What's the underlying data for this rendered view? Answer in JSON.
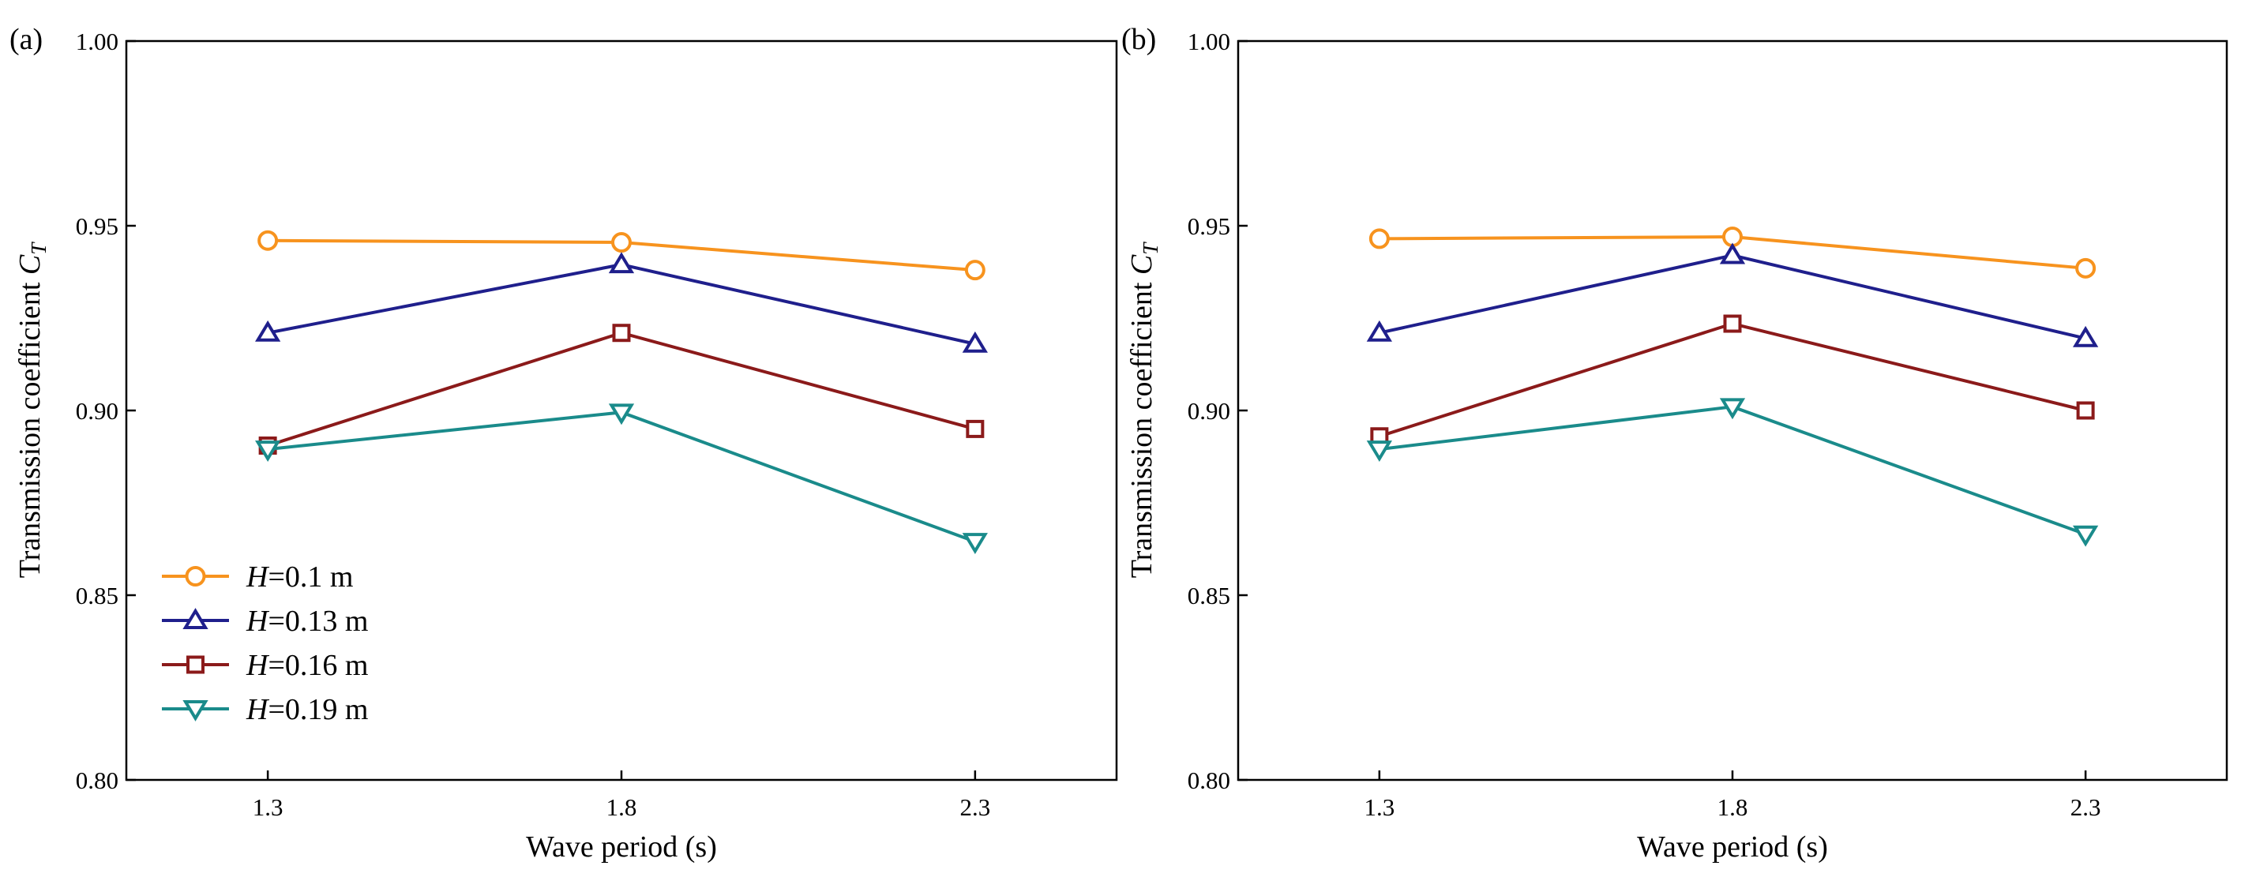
{
  "chart_data": [
    {
      "type": "line",
      "panel_label": "(a)",
      "xlabel": "Wave period (s)",
      "ylabel": "Transmission coefficient",
      "ylabel_symbol": "C",
      "ylabel_subscript": "T",
      "x": [
        1.3,
        1.8,
        2.3
      ],
      "x_ticks": [
        "1.3",
        "1.8",
        "2.3"
      ],
      "xlim": [
        1.1,
        2.5
      ],
      "ylim": [
        0.8,
        1.0
      ],
      "y_ticks": [
        "0.80",
        "0.85",
        "0.90",
        "0.95",
        "1.00"
      ],
      "grid": false,
      "legend": "bottom-left",
      "series": [
        {
          "name": "H=0.1 m",
          "legend_var": "H",
          "legend_rest": "=0.1 m",
          "color": "#f7931e",
          "marker": "circle",
          "values": [
            0.946,
            0.9455,
            0.938
          ]
        },
        {
          "name": "H=0.13 m",
          "legend_var": "H",
          "legend_rest": "=0.13 m",
          "color": "#1f1f8c",
          "marker": "triangle-up",
          "values": [
            0.921,
            0.9395,
            0.918
          ]
        },
        {
          "name": "H=0.16 m",
          "legend_var": "H",
          "legend_rest": "=0.16 m",
          "color": "#8b1a1a",
          "marker": "square",
          "values": [
            0.8905,
            0.921,
            0.895
          ]
        },
        {
          "name": "H=0.19 m",
          "legend_var": "H",
          "legend_rest": "=0.19 m",
          "color": "#1a8b8b",
          "marker": "triangle-down",
          "values": [
            0.8895,
            0.8995,
            0.8645
          ]
        }
      ]
    },
    {
      "type": "line",
      "panel_label": "(b)",
      "xlabel": "Wave period (s)",
      "ylabel": "Transmission coefficient",
      "ylabel_symbol": "C",
      "ylabel_subscript": "T",
      "x": [
        1.3,
        1.8,
        2.3
      ],
      "x_ticks": [
        "1.3",
        "1.8",
        "2.3"
      ],
      "xlim": [
        1.1,
        2.5
      ],
      "ylim": [
        0.8,
        1.0
      ],
      "y_ticks": [
        "0.80",
        "0.85",
        "0.90",
        "0.95",
        "1.00"
      ],
      "grid": false,
      "legend": "",
      "series": [
        {
          "name": "H=0.1 m",
          "color": "#f7931e",
          "marker": "circle",
          "values": [
            0.9465,
            0.947,
            0.9385
          ]
        },
        {
          "name": "H=0.13 m",
          "color": "#1f1f8c",
          "marker": "triangle-up",
          "values": [
            0.921,
            0.942,
            0.9195
          ]
        },
        {
          "name": "H=0.16 m",
          "color": "#8b1a1a",
          "marker": "square",
          "values": [
            0.893,
            0.9235,
            0.9
          ]
        },
        {
          "name": "H=0.19 m",
          "color": "#1a8b8b",
          "marker": "triangle-down",
          "values": [
            0.8895,
            0.901,
            0.8665
          ]
        }
      ]
    }
  ]
}
